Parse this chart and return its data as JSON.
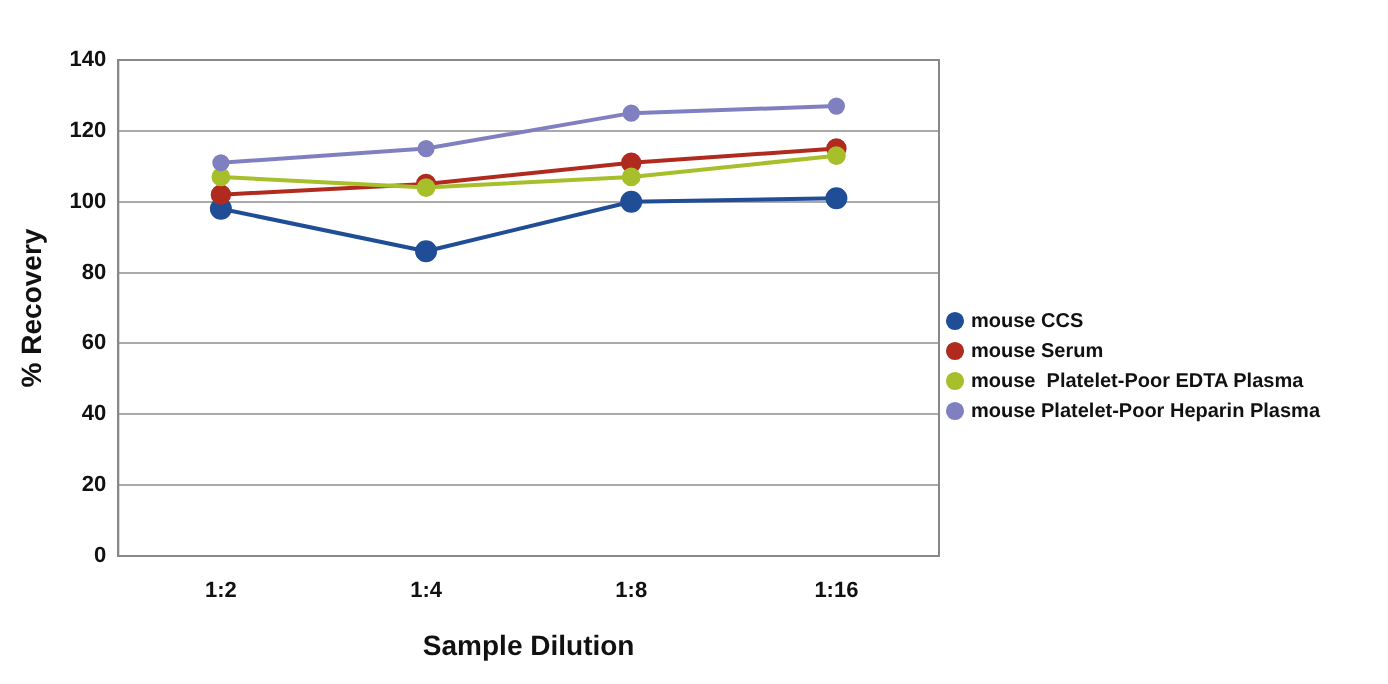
{
  "chart_data": {
    "type": "line",
    "xlabel": "Sample Dilution",
    "ylabel": "% Recovery",
    "categories": [
      "1:2",
      "1:4",
      "1:8",
      "1:16"
    ],
    "series": [
      {
        "name": "mouse CCS",
        "color": "#1f4e96",
        "values": [
          98,
          86,
          100,
          101
        ]
      },
      {
        "name": "mouse Serum",
        "color": "#b02a1e",
        "values": [
          102,
          105,
          111,
          115
        ]
      },
      {
        "name": "mouse  Platelet-Poor EDTA Plasma",
        "color": "#a6bf2a",
        "values": [
          107,
          104,
          107,
          113
        ]
      },
      {
        "name": "mouse Platelet-Poor Heparin Plasma",
        "color": "#8080c0",
        "values": [
          111,
          115,
          125,
          127
        ]
      }
    ],
    "ylim": [
      0,
      140
    ],
    "yticks": [
      0,
      20,
      40,
      60,
      80,
      100,
      120,
      140
    ],
    "grid": "y",
    "legend": "right",
    "marker": "circle",
    "line_style": "solid"
  }
}
